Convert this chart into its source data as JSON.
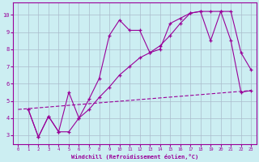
{
  "xlabel": "Windchill (Refroidissement éolien,°C)",
  "bg_color": "#cceef2",
  "line_color": "#990099",
  "grid_color": "#aabbcc",
  "xlim": [
    -0.5,
    23.5
  ],
  "ylim": [
    2.5,
    10.7
  ],
  "yticks": [
    3,
    4,
    5,
    6,
    7,
    8,
    9,
    10
  ],
  "xticks": [
    0,
    1,
    2,
    3,
    4,
    5,
    6,
    7,
    8,
    9,
    10,
    11,
    12,
    13,
    14,
    15,
    16,
    17,
    18,
    19,
    20,
    21,
    22,
    23
  ],
  "line1_x": [
    1,
    2,
    3,
    4,
    5,
    6,
    7,
    8,
    9,
    10,
    11,
    12,
    13,
    14,
    15,
    16,
    17,
    18,
    19,
    20,
    21,
    22,
    23
  ],
  "line1_y": [
    4.5,
    2.9,
    4.1,
    3.2,
    5.5,
    4.0,
    5.1,
    6.3,
    8.8,
    9.7,
    9.1,
    9.1,
    7.8,
    8.0,
    9.5,
    9.8,
    10.1,
    10.2,
    10.2,
    10.2,
    10.2,
    7.8,
    6.8
  ],
  "line2_x": [
    1,
    2,
    3,
    4,
    5,
    6,
    7,
    8,
    9,
    10,
    11,
    12,
    13,
    14,
    15,
    16,
    17,
    18,
    19,
    20,
    21,
    22,
    23
  ],
  "line2_y": [
    4.5,
    2.9,
    4.1,
    3.2,
    3.2,
    4.0,
    4.5,
    5.2,
    5.8,
    6.5,
    7.0,
    7.5,
    7.8,
    8.2,
    8.8,
    9.5,
    10.1,
    10.2,
    8.5,
    10.2,
    8.5,
    5.5,
    5.6
  ],
  "line3_x": [
    0,
    23
  ],
  "line3_y": [
    4.5,
    5.6
  ]
}
